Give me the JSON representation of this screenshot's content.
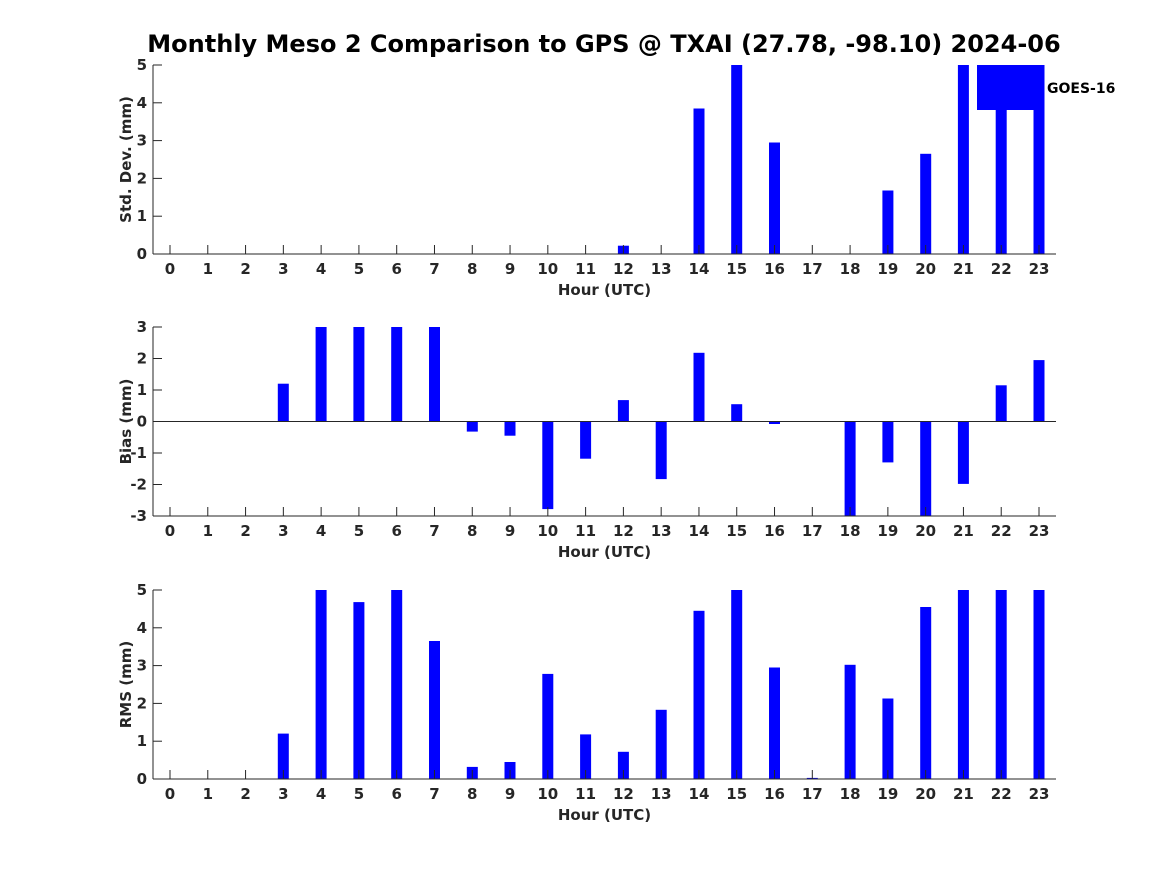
{
  "title": "Monthly Meso 2 Comparison to GPS @ TXAI (27.78, -98.10) 2024-06",
  "colors": {
    "bar": "#0000ff",
    "axis": "#262626"
  },
  "legend": {
    "label": "GOES-16",
    "placement": "top-right"
  },
  "chart_data": [
    {
      "type": "bar",
      "categories": [
        "0",
        "1",
        "2",
        "3",
        "4",
        "5",
        "6",
        "7",
        "8",
        "9",
        "10",
        "11",
        "12",
        "13",
        "14",
        "15",
        "16",
        "17",
        "18",
        "19",
        "20",
        "21",
        "22",
        "23"
      ],
      "values": [
        0,
        0,
        0,
        0,
        0,
        0,
        0,
        0,
        0,
        0,
        0,
        0,
        0.22,
        0,
        3.85,
        5,
        2.95,
        0,
        0,
        1.68,
        2.65,
        5,
        5,
        5
      ],
      "xlabel": "Hour (UTC)",
      "ylabel": "Std. Dev. (mm)",
      "ylim": [
        0,
        5
      ],
      "yticks": [
        "0",
        "1",
        "2",
        "3",
        "4",
        "5"
      ],
      "grid": false
    },
    {
      "type": "bar",
      "categories": [
        "0",
        "1",
        "2",
        "3",
        "4",
        "5",
        "6",
        "7",
        "8",
        "9",
        "10",
        "11",
        "12",
        "13",
        "14",
        "15",
        "16",
        "17",
        "18",
        "19",
        "20",
        "21",
        "22",
        "23"
      ],
      "values": [
        0,
        0,
        0,
        1.2,
        3,
        3,
        3,
        3,
        -0.32,
        -0.45,
        -2.78,
        -1.18,
        0.68,
        -1.83,
        2.18,
        0.55,
        -0.08,
        0,
        -3,
        -1.3,
        -3,
        -1.98,
        1.15,
        1.95
      ],
      "xlabel": "Hour (UTC)",
      "ylabel": "Bias (mm)",
      "ylim": [
        -3,
        3
      ],
      "yticks": [
        "-3",
        "-2",
        "-1",
        "0",
        "1",
        "2",
        "3"
      ],
      "zero_line": true,
      "grid": false
    },
    {
      "type": "bar",
      "categories": [
        "0",
        "1",
        "2",
        "3",
        "4",
        "5",
        "6",
        "7",
        "8",
        "9",
        "10",
        "11",
        "12",
        "13",
        "14",
        "15",
        "16",
        "17",
        "18",
        "19",
        "20",
        "21",
        "22",
        "23"
      ],
      "values": [
        0,
        0,
        0,
        1.2,
        5,
        4.68,
        5,
        3.65,
        0.32,
        0.45,
        2.78,
        1.18,
        0.72,
        1.83,
        4.45,
        5,
        2.95,
        0.03,
        3.02,
        2.13,
        4.55,
        5,
        5,
        5
      ],
      "xlabel": "Hour (UTC)",
      "ylabel": "RMS (mm)",
      "ylim": [
        0,
        5
      ],
      "yticks": [
        "0",
        "1",
        "2",
        "3",
        "4",
        "5"
      ],
      "grid": false
    }
  ]
}
